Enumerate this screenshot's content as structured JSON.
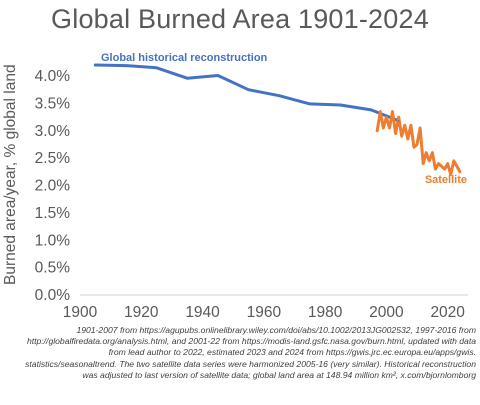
{
  "chart_data": {
    "type": "line",
    "title": "Global Burned Area 1901-2024",
    "xlabel": "",
    "ylabel": "Burned area/year, % global land",
    "xlim": [
      1900,
      2025
    ],
    "ylim": [
      0.0,
      4.0
    ],
    "x_ticks": [
      1900,
      1920,
      1940,
      1960,
      1980,
      2000,
      2020
    ],
    "y_ticks": [
      "0.0%",
      "0.5%",
      "1.0%",
      "1.5%",
      "2.0%",
      "2.5%",
      "3.0%",
      "3.5%",
      "4.0%"
    ],
    "y_tick_values": [
      0.0,
      0.5,
      1.0,
      1.5,
      2.0,
      2.5,
      3.0,
      3.5,
      4.0
    ],
    "grid": false,
    "series": [
      {
        "name": "Global historical reconstruction",
        "color": "#4472C4",
        "x": [
          1905,
          1915,
          1925,
          1935,
          1945,
          1955,
          1965,
          1975,
          1985,
          1995,
          2001,
          2004
        ],
        "y": [
          4.2,
          4.19,
          4.15,
          3.96,
          4.01,
          3.75,
          3.64,
          3.49,
          3.47,
          3.38,
          3.25,
          3.18
        ]
      },
      {
        "name": "Satellite",
        "color": "#ED7D31",
        "x": [
          1997,
          1998,
          1999,
          2000,
          2001,
          2002,
          2003,
          2004,
          2005,
          2006,
          2007,
          2008,
          2009,
          2010,
          2011,
          2012,
          2013,
          2014,
          2015,
          2016,
          2017,
          2018,
          2019,
          2020,
          2021,
          2022,
          2023,
          2024
        ],
        "y": [
          3.0,
          3.35,
          3.05,
          3.25,
          3.05,
          3.35,
          2.95,
          3.25,
          2.9,
          3.1,
          2.85,
          3.1,
          2.7,
          2.75,
          3.05,
          2.4,
          2.6,
          2.45,
          2.6,
          2.3,
          2.4,
          2.35,
          2.3,
          2.4,
          2.2,
          2.45,
          2.35,
          2.25
        ]
      }
    ]
  },
  "footnote": "1901-2007 from https://agupubs.onlinelibrary.wiley.com/doi/abs/10.1002/2013JG002532, 1997-2016 from http://globalfiredata.org/analysis.html, and 2001-22 from https://modis-land.gsfc.nasa.gov/burn.html, updated with data from lead author to 2022, estimated 2023 and 2024 from https://gwis.jrc.ec.europa.eu/apps/gwis. statistics/seasonaltrend. The two satellite data series were harmonized 2005-16 (very similar). Historical reconstruction was adjusted to last version of satellite data; global land area at 148.94 million km², x.com/bjornlomborg"
}
